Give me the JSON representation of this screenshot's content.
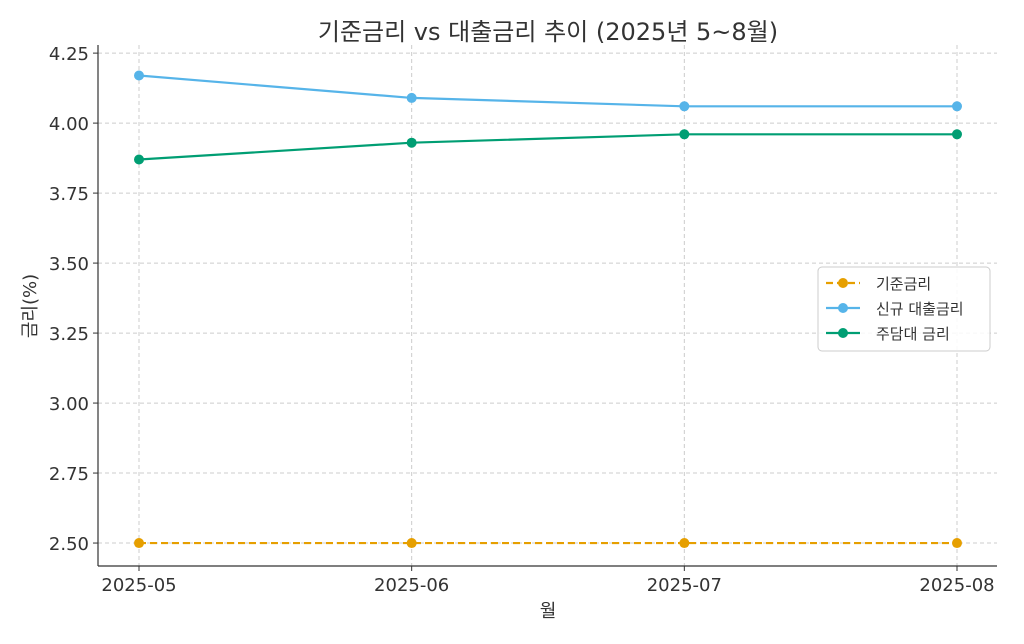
{
  "chart_data": {
    "type": "line",
    "title": "기준금리 vs 대출금리 추이 (2025년 5~8월)",
    "xlabel": "월",
    "ylabel": "금리(%)",
    "categories": [
      "2025-05",
      "2025-06",
      "2025-07",
      "2025-08"
    ],
    "ylim": [
      2.418,
      4.279
    ],
    "yticks": [
      2.5,
      2.75,
      3.0,
      3.25,
      3.5,
      3.75,
      4.0,
      4.25
    ],
    "ytick_labels": [
      "2.50",
      "2.75",
      "3.00",
      "3.25",
      "3.50",
      "3.75",
      "4.00",
      "4.25"
    ],
    "grid": true,
    "legend_position": "center-right",
    "series": [
      {
        "name": "기준금리",
        "values": [
          2.5,
          2.5,
          2.5,
          2.5
        ],
        "color": "#E69F00",
        "dash": true
      },
      {
        "name": "신규 대출금리",
        "values": [
          4.17,
          4.09,
          4.06,
          4.06
        ],
        "color": "#56B4E9",
        "dash": false
      },
      {
        "name": "주담대 금리",
        "values": [
          3.87,
          3.93,
          3.96,
          3.96
        ],
        "color": "#009E73",
        "dash": false
      }
    ]
  }
}
